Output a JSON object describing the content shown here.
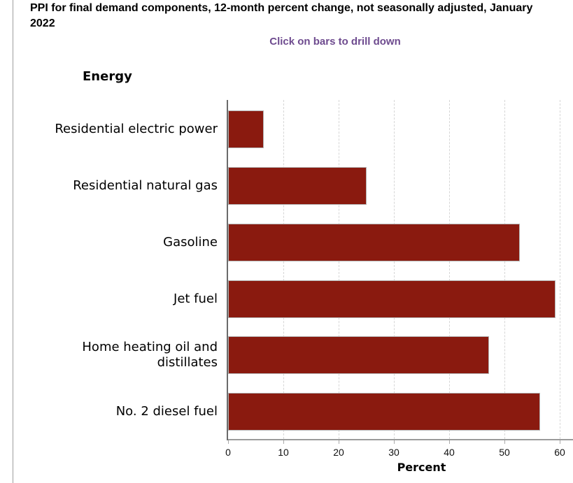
{
  "header": {
    "title_line1": "PPI for final demand components, 12-month percent change, not seasonally adjusted, January",
    "title_line2": "2022",
    "subtitle": "Click on bars to drill down"
  },
  "colors": {
    "bar": "#8a1a0f",
    "subtitle": "#6e4b8f"
  },
  "chart_data": {
    "type": "bar",
    "orientation": "horizontal",
    "title": "PPI for final demand components, 12-month percent change, not seasonally adjusted, January 2022",
    "subtitle": "Click on bars to drill down",
    "group_label": "Energy",
    "categories": [
      "Residential electric power",
      "Residential natural gas",
      "Gasoline",
      "Jet fuel",
      "Home heating oil and distillates",
      "No. 2 diesel fuel"
    ],
    "values": [
      6.5,
      25.0,
      52.8,
      59.2,
      47.2,
      56.4
    ],
    "xlabel": "Percent",
    "ylabel": "",
    "axis": {
      "min": 0,
      "max": 70,
      "tick_interval": 10
    },
    "grid": "vertical-dashed",
    "legend": "none",
    "bar_color": "#8a1a0f"
  }
}
